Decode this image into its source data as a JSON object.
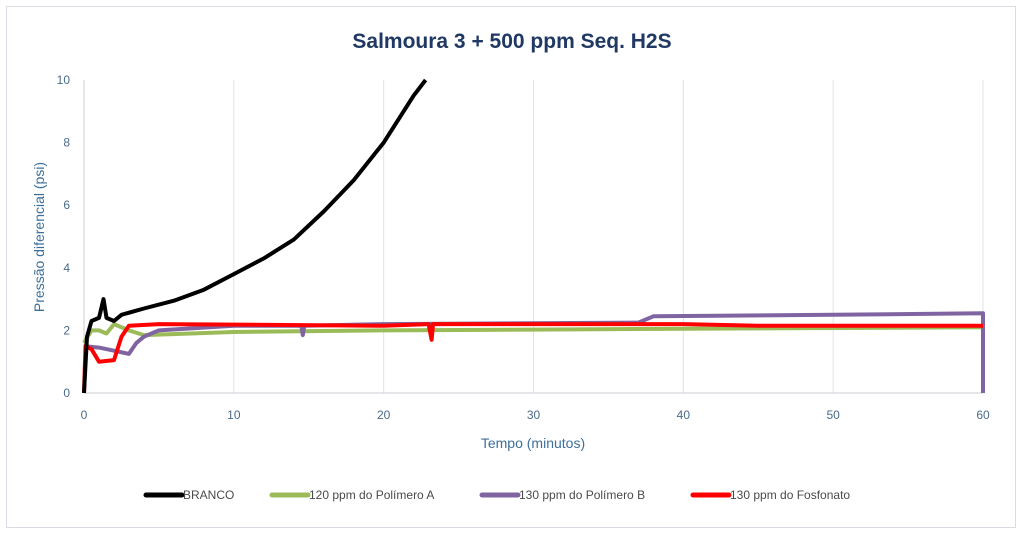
{
  "chart_data": {
    "type": "line",
    "title": "Salmoura 3 + 500 ppm Seq. H2S",
    "xlabel": "Tempo (minutos)",
    "ylabel": "Pressão diferencial (psi)",
    "xlim": [
      0,
      60
    ],
    "ylim": [
      0,
      10
    ],
    "xticks": [
      0,
      10,
      20,
      30,
      40,
      50,
      60
    ],
    "yticks": [
      0,
      2,
      4,
      6,
      8,
      10
    ],
    "grid": "vertical",
    "legend_position": "bottom",
    "series": [
      {
        "name": "BRANCO",
        "color": "#000000",
        "x": [
          0,
          0.2,
          0.5,
          1,
          1.3,
          1.5,
          2,
          2.5,
          4,
          6,
          8,
          10,
          12,
          14,
          16,
          18,
          20,
          22,
          22.8
        ],
        "y": [
          0,
          1.8,
          2.3,
          2.4,
          3.0,
          2.4,
          2.3,
          2.5,
          2.7,
          2.95,
          3.3,
          3.8,
          4.3,
          4.9,
          5.8,
          6.8,
          8.0,
          9.5,
          10
        ]
      },
      {
        "name": "120 ppm do Polímero A",
        "color": "#9bbb59",
        "x": [
          0,
          0.5,
          1,
          1.5,
          2,
          3,
          4,
          10,
          20,
          40,
          60
        ],
        "y": [
          1.6,
          2.0,
          2.0,
          1.9,
          2.2,
          2.0,
          1.85,
          1.95,
          2.0,
          2.05,
          2.1
        ]
      },
      {
        "name": "130 ppm do Polímero B",
        "color": "#8064a2",
        "x": [
          0,
          1,
          2,
          3,
          3.5,
          4,
          5,
          10,
          14.5,
          14.6,
          14.7,
          20,
          37,
          38,
          50,
          60,
          60
        ],
        "y": [
          1.5,
          1.45,
          1.35,
          1.25,
          1.6,
          1.8,
          2.0,
          2.15,
          2.15,
          1.85,
          2.15,
          2.2,
          2.25,
          2.45,
          2.5,
          2.55,
          0
        ]
      },
      {
        "name": "130 ppm do Fosfonato",
        "color": "#ff0000",
        "x": [
          0,
          0.1,
          0.5,
          1,
          2,
          2.5,
          3,
          5,
          20,
          23,
          23.2,
          23.3,
          40,
          45,
          60
        ],
        "y": [
          0,
          1.5,
          1.4,
          1.0,
          1.05,
          1.8,
          2.15,
          2.2,
          2.15,
          2.2,
          1.7,
          2.2,
          2.2,
          2.15,
          2.15
        ]
      }
    ]
  }
}
